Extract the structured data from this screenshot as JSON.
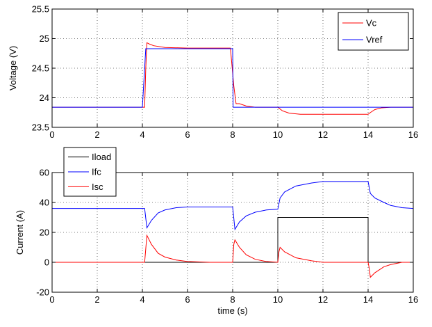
{
  "chart_data": [
    {
      "type": "line",
      "title": "",
      "xlabel": "",
      "ylabel": "Voltage (V)",
      "xlim": [
        0,
        16
      ],
      "ylim": [
        23.5,
        25.5
      ],
      "xticks": [
        0,
        2,
        4,
        6,
        8,
        10,
        12,
        14,
        16
      ],
      "yticks": [
        23.5,
        24,
        24.5,
        25,
        25.5
      ],
      "xtick_labels": [
        "0",
        "2",
        "4",
        "6",
        "8",
        "10",
        "12",
        "14",
        "16"
      ],
      "ytick_labels": [
        "23.5",
        "24",
        "24.5",
        "25",
        "25.5"
      ],
      "grid": true,
      "legend_position": "top-right",
      "series": [
        {
          "name": "Vc",
          "color": "#ff0000",
          "x": [
            0,
            4.1,
            4.15,
            4.2,
            4.3,
            4.5,
            5,
            6,
            7.9,
            8.05,
            8.15,
            8.3,
            8.6,
            9,
            10,
            10.2,
            10.5,
            11,
            12,
            13,
            14,
            14.1,
            14.3,
            14.6,
            15,
            16
          ],
          "y": [
            23.84,
            23.84,
            24.5,
            24.93,
            24.91,
            24.88,
            24.85,
            24.84,
            24.84,
            24.2,
            23.9,
            23.9,
            23.86,
            23.84,
            23.84,
            23.78,
            23.74,
            23.72,
            23.72,
            23.72,
            23.72,
            23.75,
            23.8,
            23.83,
            23.84,
            23.84
          ]
        },
        {
          "name": "Vref",
          "color": "#0000ff",
          "x": [
            0,
            4.0,
            4.15,
            8.0,
            8.02,
            16
          ],
          "y": [
            23.84,
            23.84,
            24.83,
            24.83,
            23.84,
            23.84
          ]
        }
      ]
    },
    {
      "type": "line",
      "title": "",
      "xlabel": "time (s)",
      "ylabel": "Current (A)",
      "xlim": [
        0,
        16
      ],
      "ylim": [
        -20,
        60
      ],
      "xticks": [
        0,
        2,
        4,
        6,
        8,
        10,
        12,
        14,
        16
      ],
      "yticks": [
        -20,
        0,
        20,
        40,
        60
      ],
      "xtick_labels": [
        "0",
        "2",
        "4",
        "6",
        "8",
        "10",
        "12",
        "14",
        "16"
      ],
      "ytick_labels": [
        "-20",
        "0",
        "20",
        "40",
        "60"
      ],
      "grid": true,
      "legend_position": "top-left",
      "series": [
        {
          "name": "Iload",
          "color": "#000000",
          "x": [
            0,
            10.0,
            10.0,
            14.0,
            14.0,
            16
          ],
          "y": [
            0,
            0,
            30,
            30,
            0,
            0
          ]
        },
        {
          "name": "Ifc",
          "color": "#0000ff",
          "x": [
            0,
            4.1,
            4.2,
            4.4,
            4.7,
            5,
            5.5,
            6,
            7,
            8,
            8.1,
            8.3,
            8.6,
            9,
            9.5,
            10,
            10.1,
            10.3,
            10.8,
            11.5,
            12,
            13,
            14,
            14.1,
            14.3,
            14.7,
            15,
            15.5,
            16
          ],
          "y": [
            36,
            36,
            23,
            28,
            33,
            35,
            36.5,
            37,
            37,
            37,
            22,
            27,
            31,
            33.5,
            35,
            35.5,
            43,
            47,
            51,
            53,
            54,
            54,
            54,
            46,
            43,
            40,
            38,
            36.5,
            36
          ]
        },
        {
          "name": "Isc",
          "color": "#ff0000",
          "x": [
            0,
            4.1,
            4.2,
            4.4,
            4.7,
            5,
            5.5,
            6,
            7,
            8,
            8.05,
            8.1,
            8.3,
            8.6,
            9,
            9.5,
            10,
            10.05,
            10.1,
            10.3,
            10.8,
            11.5,
            12,
            14,
            14.05,
            14.1,
            14.3,
            14.7,
            15,
            15.5,
            16
          ],
          "y": [
            0,
            0,
            18,
            12,
            6,
            3.5,
            1.5,
            0.5,
            0,
            0,
            12,
            15,
            10,
            5,
            2,
            0.5,
            0,
            7,
            10,
            7,
            3,
            1,
            0,
            0,
            -4,
            -10,
            -7,
            -3,
            -1.5,
            0,
            0
          ]
        }
      ]
    }
  ]
}
